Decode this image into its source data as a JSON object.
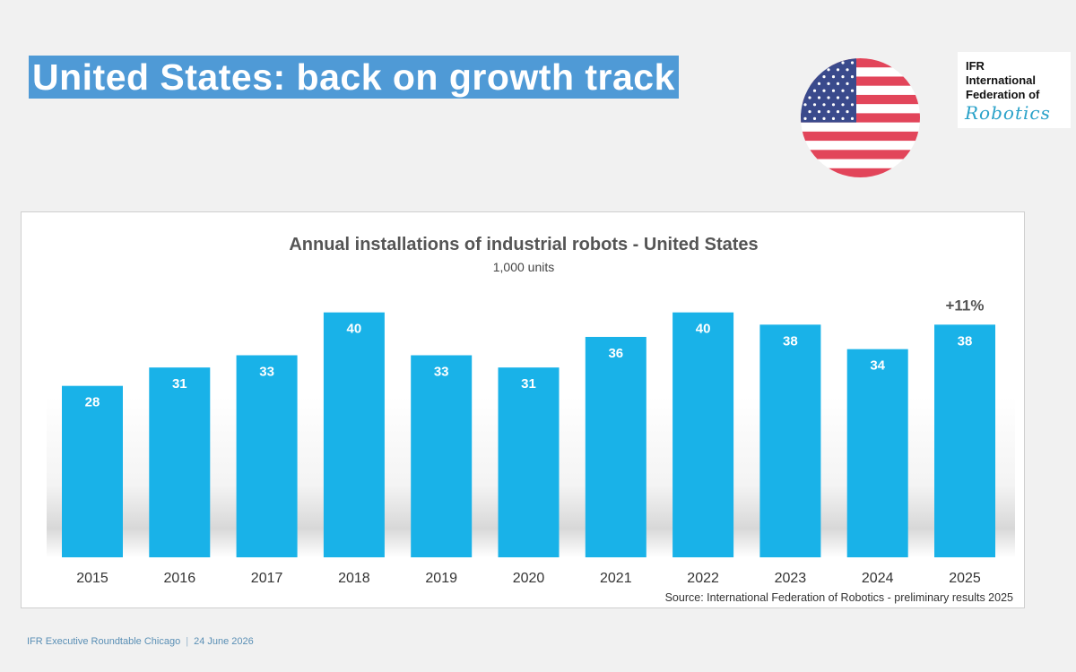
{
  "slide": {
    "title": "United States: back on growth track",
    "footer_event": "IFR Executive Roundtable Chicago",
    "footer_separator": "|",
    "footer_date": "24 June 2026"
  },
  "logo": {
    "lines": [
      "IFR",
      "International",
      "Federation of"
    ],
    "script_word": "Robotics",
    "accent_color": "#2aa2c9"
  },
  "flag": {
    "icon": "us-flag-icon",
    "red": "#e2455a",
    "blue": "#3a4a8c"
  },
  "chart_data": {
    "type": "bar",
    "title": "Annual installations of industrial robots - United States",
    "subtitle": "1,000 units",
    "categories": [
      "2015",
      "2016",
      "2017",
      "2018",
      "2019",
      "2020",
      "2021",
      "2022",
      "2023",
      "2024",
      "2025"
    ],
    "values": [
      28,
      31,
      33,
      40,
      33,
      31,
      36,
      40,
      38,
      34,
      38
    ],
    "data_labels": [
      "28",
      "31",
      "33",
      "40",
      "33",
      "31",
      "36",
      "40",
      "38",
      "34",
      "38"
    ],
    "annotation": {
      "text": "+11%",
      "category": "2025"
    },
    "source": "Source: International Federation of Robotics - preliminary results 2025",
    "ylim": [
      0,
      42
    ],
    "grid": false,
    "bar_color": "#19b2e8",
    "title_color": "#555555"
  }
}
